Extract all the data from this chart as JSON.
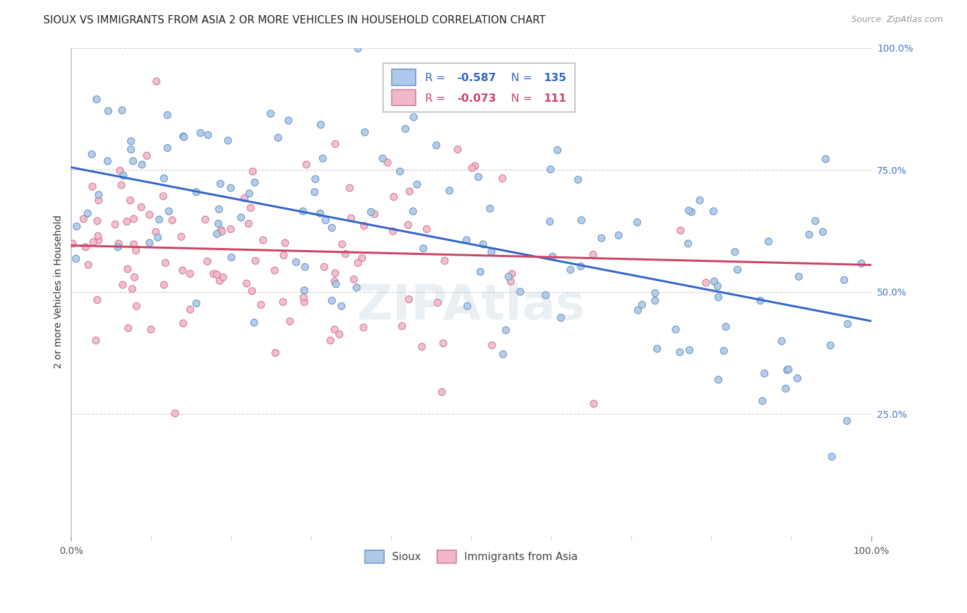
{
  "title": "SIOUX VS IMMIGRANTS FROM ASIA 2 OR MORE VEHICLES IN HOUSEHOLD CORRELATION CHART",
  "source_text": "Source: ZipAtlas.com",
  "ylabel": "2 or more Vehicles in Household",
  "xlim": [
    0,
    1
  ],
  "ylim": [
    0,
    1
  ],
  "xtick_labels": [
    "0.0%",
    "100.0%"
  ],
  "ytick_labels_right": [
    "100.0%",
    "75.0%",
    "50.0%",
    "25.0%"
  ],
  "ytick_positions_right": [
    1.0,
    0.75,
    0.5,
    0.25
  ],
  "sioux_color": "#adc8e8",
  "sioux_edge_color": "#6090c0",
  "immigrants_color": "#f0b8c8",
  "immigrants_edge_color": "#d07090",
  "line_sioux_color": "#3366cc",
  "line_immigrants_color": "#cc4466",
  "sioux_R": -0.587,
  "sioux_N": 135,
  "immigrants_R": -0.073,
  "immigrants_N": 111,
  "legend_label_sioux": "Sioux",
  "legend_label_immigrants": "Immigrants from Asia",
  "watermark": "ZIPAtlas",
  "background_color": "#ffffff",
  "grid_color": "#cccccc",
  "title_fontsize": 11,
  "axis_label_fontsize": 10,
  "tick_fontsize": 10,
  "marker_size": 55,
  "sioux_line_y0": 0.755,
  "sioux_line_y1": 0.44,
  "immigrants_line_y0": 0.595,
  "immigrants_line_y1": 0.555
}
